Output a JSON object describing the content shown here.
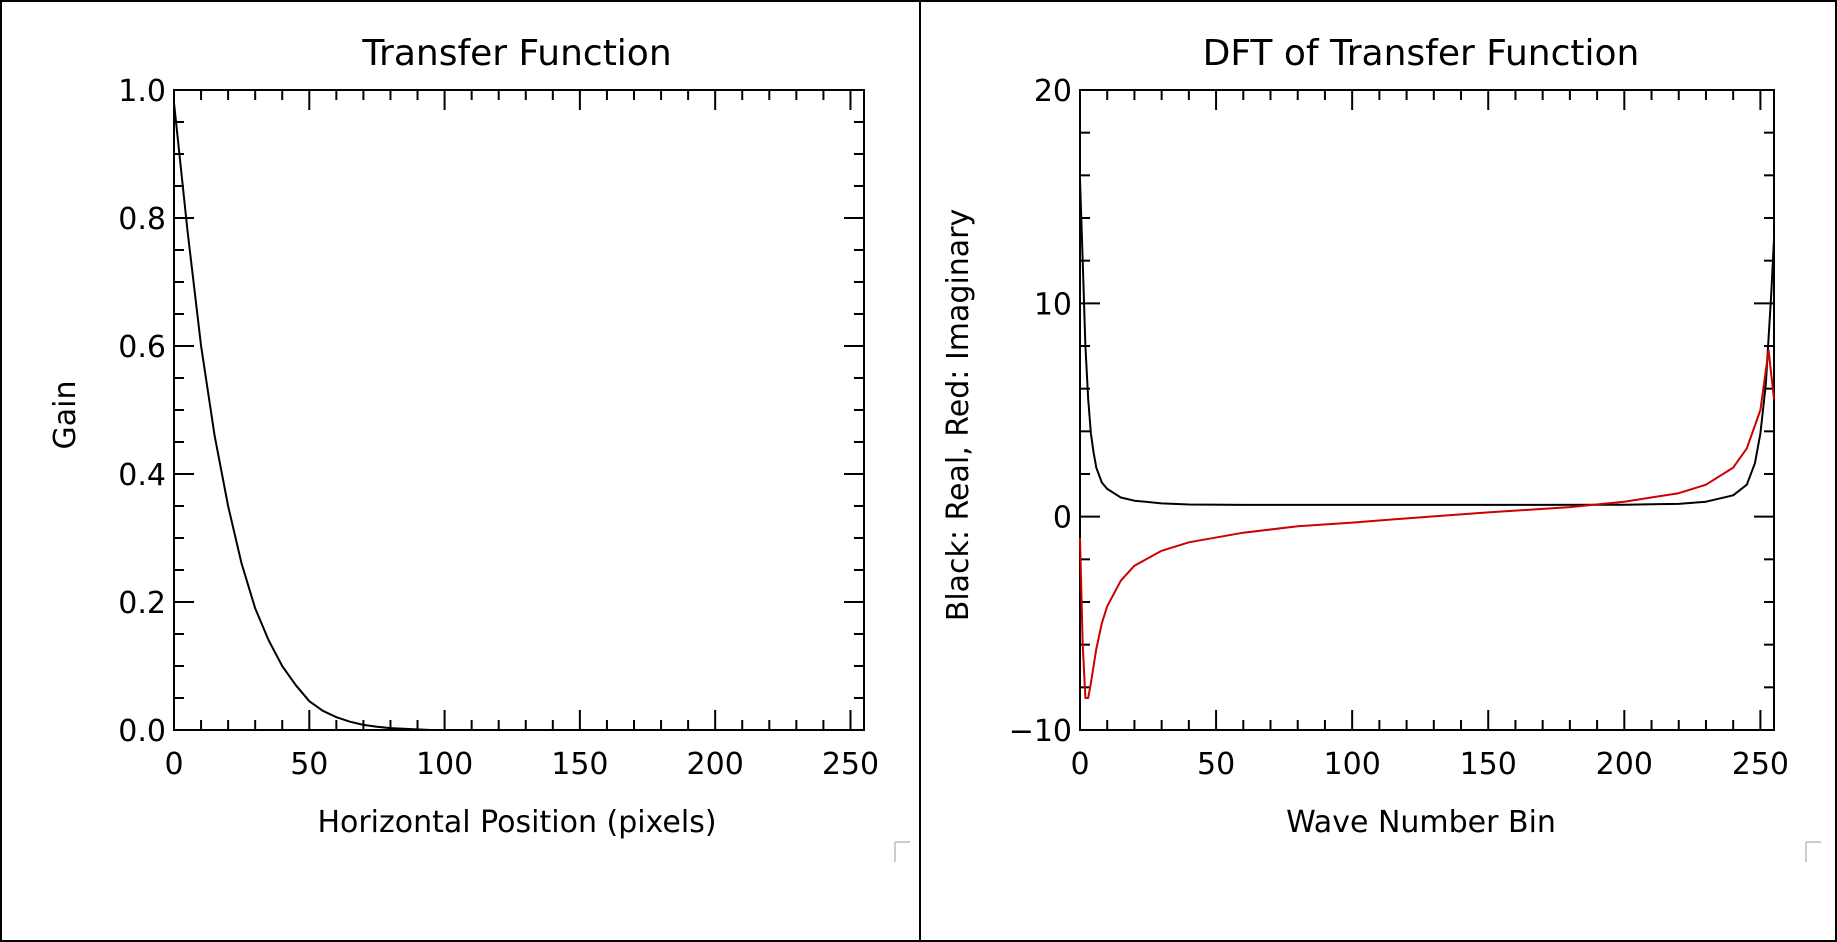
{
  "chart_data": [
    {
      "type": "line",
      "title": "Transfer Function",
      "xlabel": "Horizontal Position (pixels)",
      "ylabel": "Gain",
      "xlim": [
        0,
        255
      ],
      "ylim": [
        0,
        1
      ],
      "xticks": [
        "0",
        "50",
        "100",
        "150",
        "200",
        "250"
      ],
      "yticks": [
        "0.0",
        "0.2",
        "0.4",
        "0.6",
        "0.8",
        "1.0"
      ],
      "grid": false,
      "series": [
        {
          "color": "#000000",
          "x": [
            0,
            5,
            10,
            15,
            20,
            25,
            30,
            35,
            40,
            45,
            50,
            55,
            60,
            65,
            70,
            75,
            80,
            85,
            90,
            95,
            100
          ],
          "y": [
            0.98,
            0.78,
            0.6,
            0.46,
            0.35,
            0.26,
            0.19,
            0.14,
            0.1,
            0.07,
            0.045,
            0.03,
            0.02,
            0.013,
            0.008,
            0.005,
            0.003,
            0.002,
            0.001,
            0.0,
            0.0
          ]
        }
      ]
    },
    {
      "type": "line",
      "title": "DFT of Transfer Function",
      "xlabel": "Wave Number Bin",
      "ylabel": "Black: Real, Red: Imaginary",
      "xlim": [
        0,
        255
      ],
      "ylim": [
        -10,
        20
      ],
      "xticks": [
        "0",
        "50",
        "100",
        "150",
        "200",
        "250"
      ],
      "yticks": [
        "−10",
        "0",
        "10",
        "20"
      ],
      "grid": false,
      "series": [
        {
          "color": "#000000",
          "x": [
            0,
            1,
            2,
            3,
            4,
            5,
            6,
            8,
            10,
            15,
            20,
            30,
            40,
            60,
            100,
            150,
            200,
            220,
            230,
            240,
            245,
            248,
            250,
            252,
            254,
            255
          ],
          "y": [
            15.8,
            12.0,
            8.0,
            5.5,
            3.9,
            3.0,
            2.3,
            1.6,
            1.3,
            0.9,
            0.75,
            0.62,
            0.57,
            0.55,
            0.55,
            0.55,
            0.56,
            0.6,
            0.7,
            1.0,
            1.5,
            2.5,
            3.9,
            6.2,
            10.5,
            13.0
          ]
        },
        {
          "color": "#cc0000",
          "x": [
            0,
            1,
            2,
            3,
            4,
            5,
            6,
            8,
            10,
            15,
            20,
            30,
            40,
            60,
            80,
            100,
            128,
            150,
            180,
            200,
            220,
            230,
            240,
            245,
            250,
            253,
            255
          ],
          "y": [
            -1.0,
            -6.0,
            -8.5,
            -8.5,
            -7.8,
            -7.0,
            -6.2,
            -5.0,
            -4.2,
            -3.0,
            -2.3,
            -1.6,
            -1.2,
            -0.75,
            -0.45,
            -0.28,
            0.0,
            0.2,
            0.45,
            0.7,
            1.1,
            1.5,
            2.3,
            3.2,
            5.0,
            7.8,
            5.5
          ]
        }
      ]
    }
  ]
}
